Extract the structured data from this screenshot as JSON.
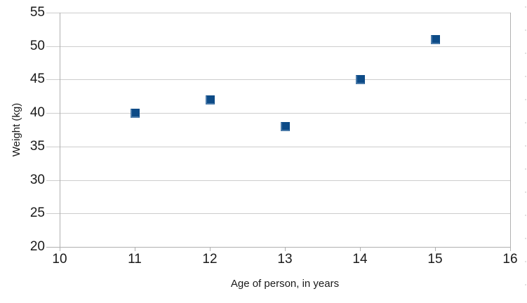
{
  "chart_data": {
    "type": "scatter",
    "title": "",
    "xlabel": "Age of person, in years",
    "ylabel": "Weight (kg)",
    "points": [
      {
        "x": 11,
        "y": 40
      },
      {
        "x": 12,
        "y": 42
      },
      {
        "x": 13,
        "y": 38
      },
      {
        "x": 14,
        "y": 45
      },
      {
        "x": 15,
        "y": 51
      }
    ],
    "xlim": [
      10,
      16
    ],
    "ylim": [
      20,
      55
    ],
    "xticks": [
      10,
      11,
      12,
      13,
      14,
      15,
      16
    ],
    "yticks": [
      20,
      25,
      30,
      35,
      40,
      45,
      50,
      55
    ],
    "grid": "horizontal-only",
    "legend": "none",
    "colors": {
      "marker_fill": "#0d4b87",
      "marker_edge": "#4a7aa9",
      "gridline": "#cdcdcd",
      "axis_line": "#b0b0b0",
      "text": "#1a1a1a",
      "background": "#ffffff"
    }
  }
}
